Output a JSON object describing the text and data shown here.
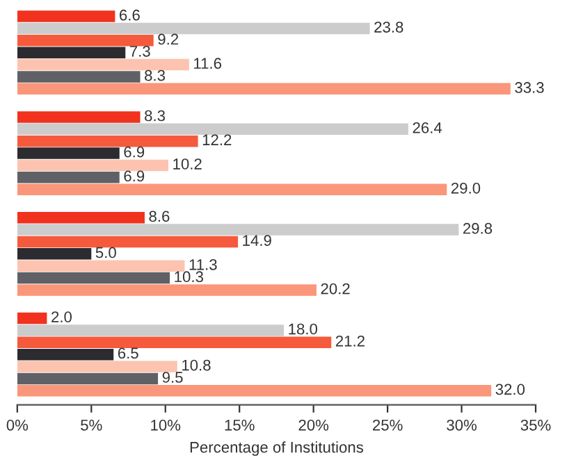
{
  "chart_data": {
    "type": "bar",
    "orientation": "horizontal",
    "xlabel": "Percentage of Institutions",
    "categories": [
      null,
      null,
      null,
      null
    ],
    "series": [
      {
        "color": "#f0321e",
        "values": [
          6.6,
          8.3,
          8.6,
          2.0
        ],
        "value_labels": [
          "6.6",
          "8.3",
          "8.6",
          "2.0"
        ]
      },
      {
        "color": "#cccccc",
        "values": [
          23.8,
          26.4,
          29.8,
          18.0
        ],
        "value_labels": [
          "23.8",
          "26.4",
          "29.8",
          "18.0"
        ]
      },
      {
        "color": "#f55a3c",
        "values": [
          9.2,
          12.2,
          14.9,
          21.2
        ],
        "value_labels": [
          "9.2",
          "12.2",
          "14.9",
          "21.2"
        ]
      },
      {
        "color": "#2b2b30",
        "values": [
          7.3,
          6.9,
          5.0,
          6.5
        ],
        "value_labels": [
          "7.3",
          "6.9",
          "5.0",
          "6.5"
        ]
      },
      {
        "color": "#fcc4b0",
        "values": [
          11.6,
          10.2,
          11.3,
          10.8
        ],
        "value_labels": [
          "11.6",
          "10.2",
          "11.3",
          "10.8"
        ]
      },
      {
        "color": "#5f6166",
        "values": [
          8.3,
          6.9,
          10.3,
          9.5
        ],
        "value_labels": [
          "8.3",
          "6.9",
          "10.3",
          "9.5"
        ]
      },
      {
        "color": "#fa967a",
        "values": [
          33.3,
          29.0,
          20.2,
          32.0
        ],
        "value_labels": [
          "33.3",
          "29.0",
          "20.2",
          "32.0"
        ]
      }
    ],
    "xlim": [
      0,
      35
    ],
    "xticks": [
      {
        "value": 0,
        "label": "0%"
      },
      {
        "value": 5,
        "label": "5%"
      },
      {
        "value": 10,
        "label": "10%"
      },
      {
        "value": 15,
        "label": "15%"
      },
      {
        "value": 20,
        "label": "20%"
      },
      {
        "value": 25,
        "label": "25%"
      },
      {
        "value": 30,
        "label": "30%"
      },
      {
        "value": 35,
        "label": "35%"
      }
    ]
  }
}
